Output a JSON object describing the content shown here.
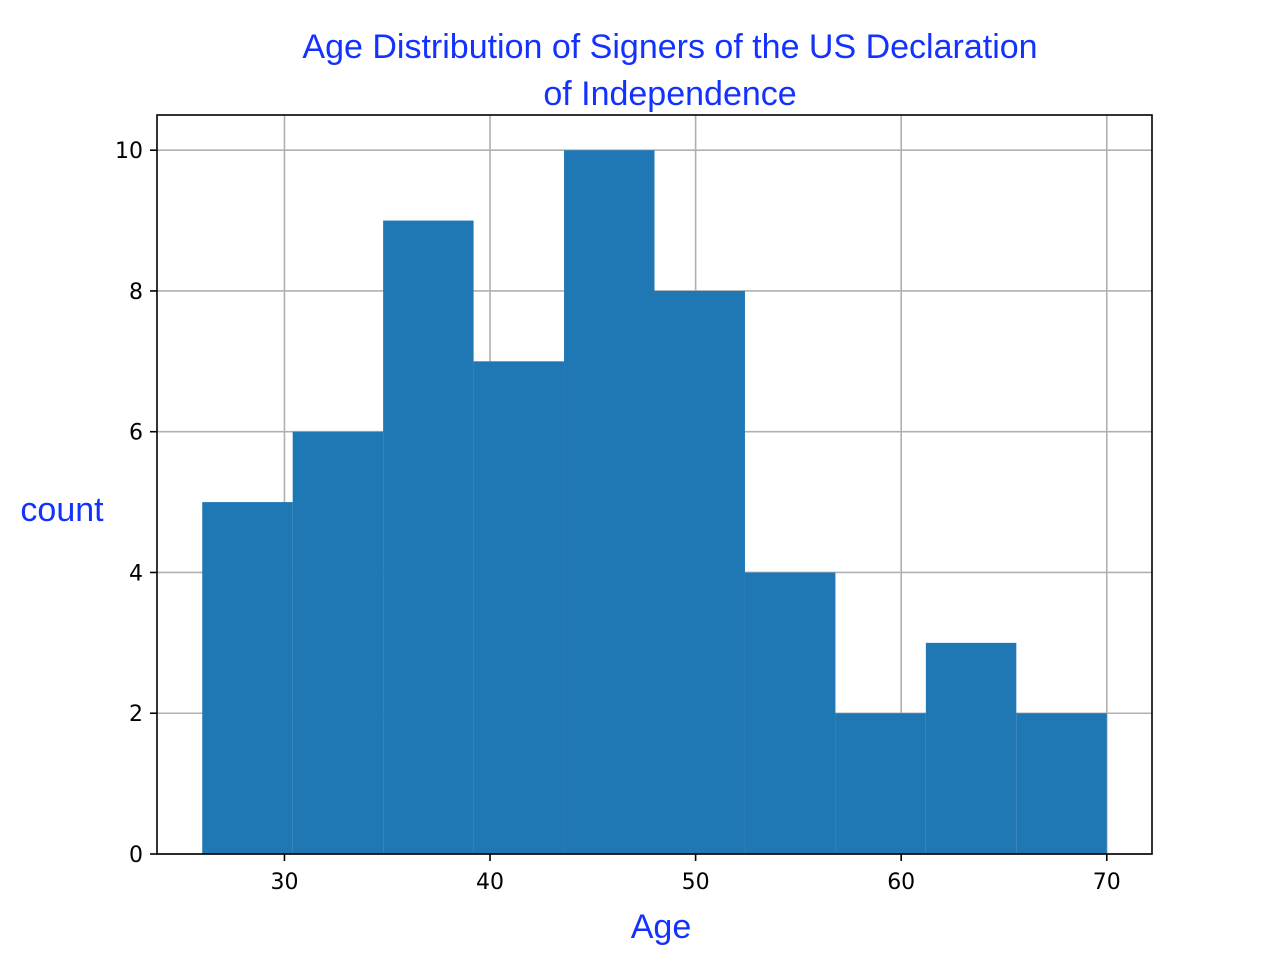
{
  "chart_data": {
    "type": "bar",
    "title_lines": [
      "Age Distribution of Signers of the US Declaration",
      "of Independence"
    ],
    "xlabel": "Age",
    "ylabel": "count",
    "bins": [
      {
        "start": 26.0,
        "end": 30.4,
        "count": 5
      },
      {
        "start": 30.4,
        "end": 34.8,
        "count": 6
      },
      {
        "start": 34.8,
        "end": 39.2,
        "count": 9
      },
      {
        "start": 39.2,
        "end": 43.6,
        "count": 7
      },
      {
        "start": 43.6,
        "end": 48.0,
        "count": 10
      },
      {
        "start": 48.0,
        "end": 52.4,
        "count": 8
      },
      {
        "start": 52.4,
        "end": 56.8,
        "count": 4
      },
      {
        "start": 56.8,
        "end": 61.2,
        "count": 2
      },
      {
        "start": 61.2,
        "end": 65.6,
        "count": 3
      },
      {
        "start": 65.6,
        "end": 70.0,
        "count": 2
      }
    ],
    "xlim": [
      23.8,
      72.2
    ],
    "ylim": [
      0,
      10.5
    ],
    "x_ticks": [
      30,
      40,
      50,
      60,
      70
    ],
    "y_ticks": [
      0,
      2,
      4,
      6,
      8,
      10
    ],
    "grid": true,
    "colors": {
      "bar": "#1f77b4",
      "label": "#1432ff",
      "grid": "#b0b0b0"
    }
  }
}
